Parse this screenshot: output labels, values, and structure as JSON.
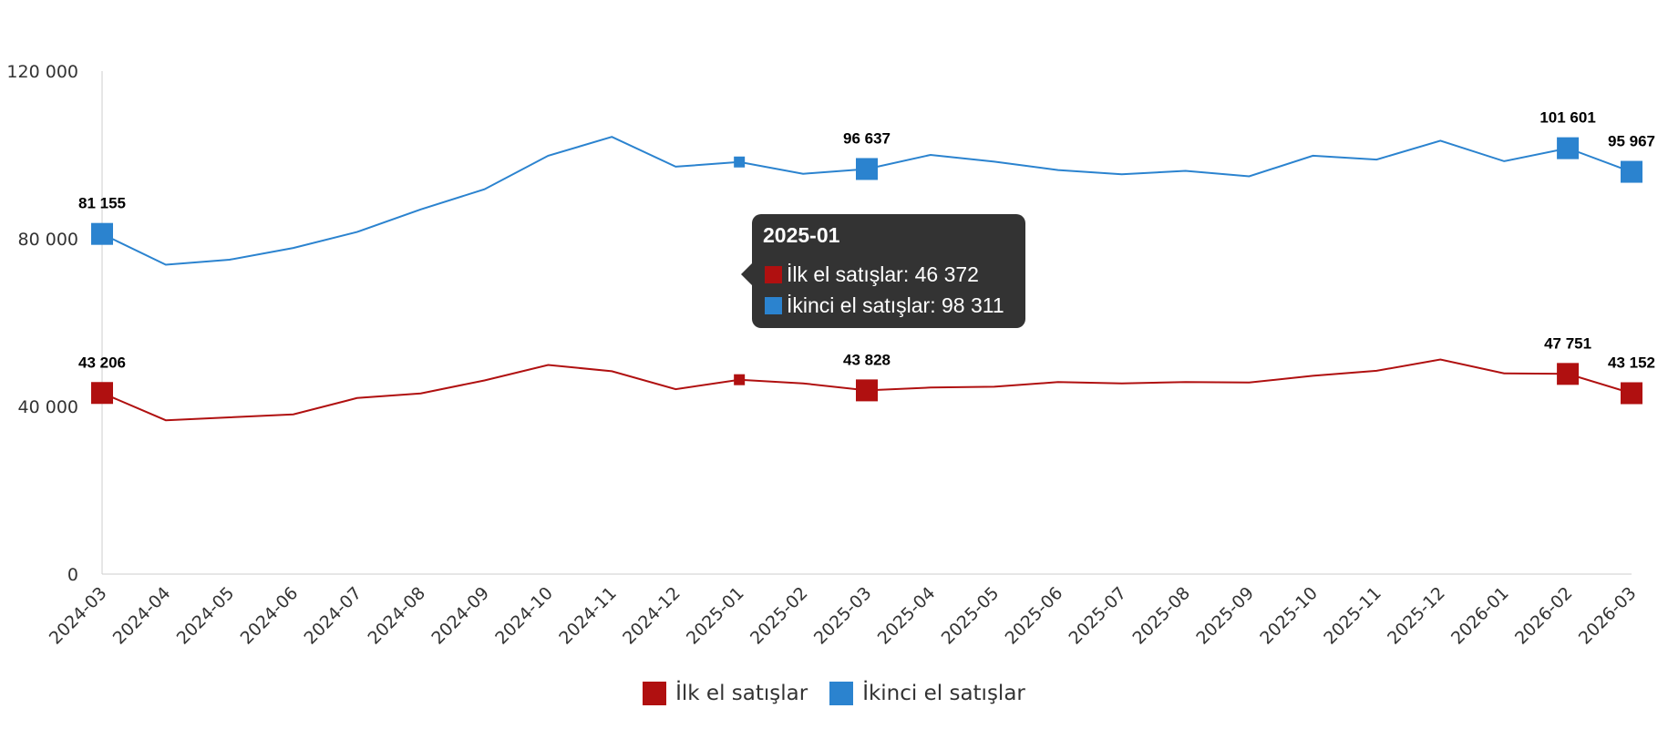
{
  "colors": {
    "series1": "#b01010",
    "series2": "#2b83cf",
    "axis": "#cccccc",
    "tooltip_bg": "#333333"
  },
  "chart_data": {
    "type": "line",
    "title": "",
    "xlabel": "",
    "ylabel": "",
    "ylim": [
      0,
      120000
    ],
    "yticks": [
      0,
      40000,
      80000,
      120000
    ],
    "ytick_labels": [
      "0",
      "40 000",
      "80 000",
      "120 000"
    ],
    "grid": false,
    "legend_position": "bottom-center",
    "categories": [
      "2024-03",
      "2024-04",
      "2024-05",
      "2024-06",
      "2024-07",
      "2024-08",
      "2024-09",
      "2024-10",
      "2024-11",
      "2024-12",
      "2025-01",
      "2025-02",
      "2025-03",
      "2025-04",
      "2025-05",
      "2025-06",
      "2025-07",
      "2025-08",
      "2025-09",
      "2025-10",
      "2025-11",
      "2025-12",
      "2026-01",
      "2026-02",
      "2026-03"
    ],
    "series": [
      {
        "name": "İlk el satışlar",
        "color": "#b01010",
        "values": [
          43206,
          36700,
          37400,
          38100,
          42000,
          43100,
          46200,
          49900,
          48400,
          44100,
          46372,
          45500,
          43828,
          44500,
          44700,
          45800,
          45500,
          45800,
          45700,
          47300,
          48500,
          51200,
          47900,
          47751,
          43152
        ],
        "data_labels": {
          "0": "43 206",
          "12": "43 828",
          "23": "47 751",
          "24": "43 152"
        }
      },
      {
        "name": "İkinci el satışlar",
        "color": "#2b83cf",
        "values": [
          81155,
          73800,
          75000,
          77800,
          81600,
          87000,
          91800,
          99800,
          104300,
          97200,
          98311,
          95500,
          96637,
          100000,
          98400,
          96400,
          95400,
          96200,
          94900,
          99800,
          98900,
          103400,
          98500,
          101601,
          95967
        ],
        "data_labels": {
          "0": "81 155",
          "12": "96 637",
          "23": "101 601",
          "24": "95 967"
        }
      }
    ]
  },
  "tooltip": {
    "title": "2025-01",
    "rows": [
      {
        "label": "İlk el satışlar: 46 372",
        "color": "#b01010"
      },
      {
        "label": "İkinci el satışlar: 98 311",
        "color": "#2b83cf"
      }
    ]
  },
  "legend": {
    "items": [
      {
        "label": "İlk el satışlar",
        "color": "#b01010"
      },
      {
        "label": "İkinci el satışlar",
        "color": "#2b83cf"
      }
    ]
  }
}
